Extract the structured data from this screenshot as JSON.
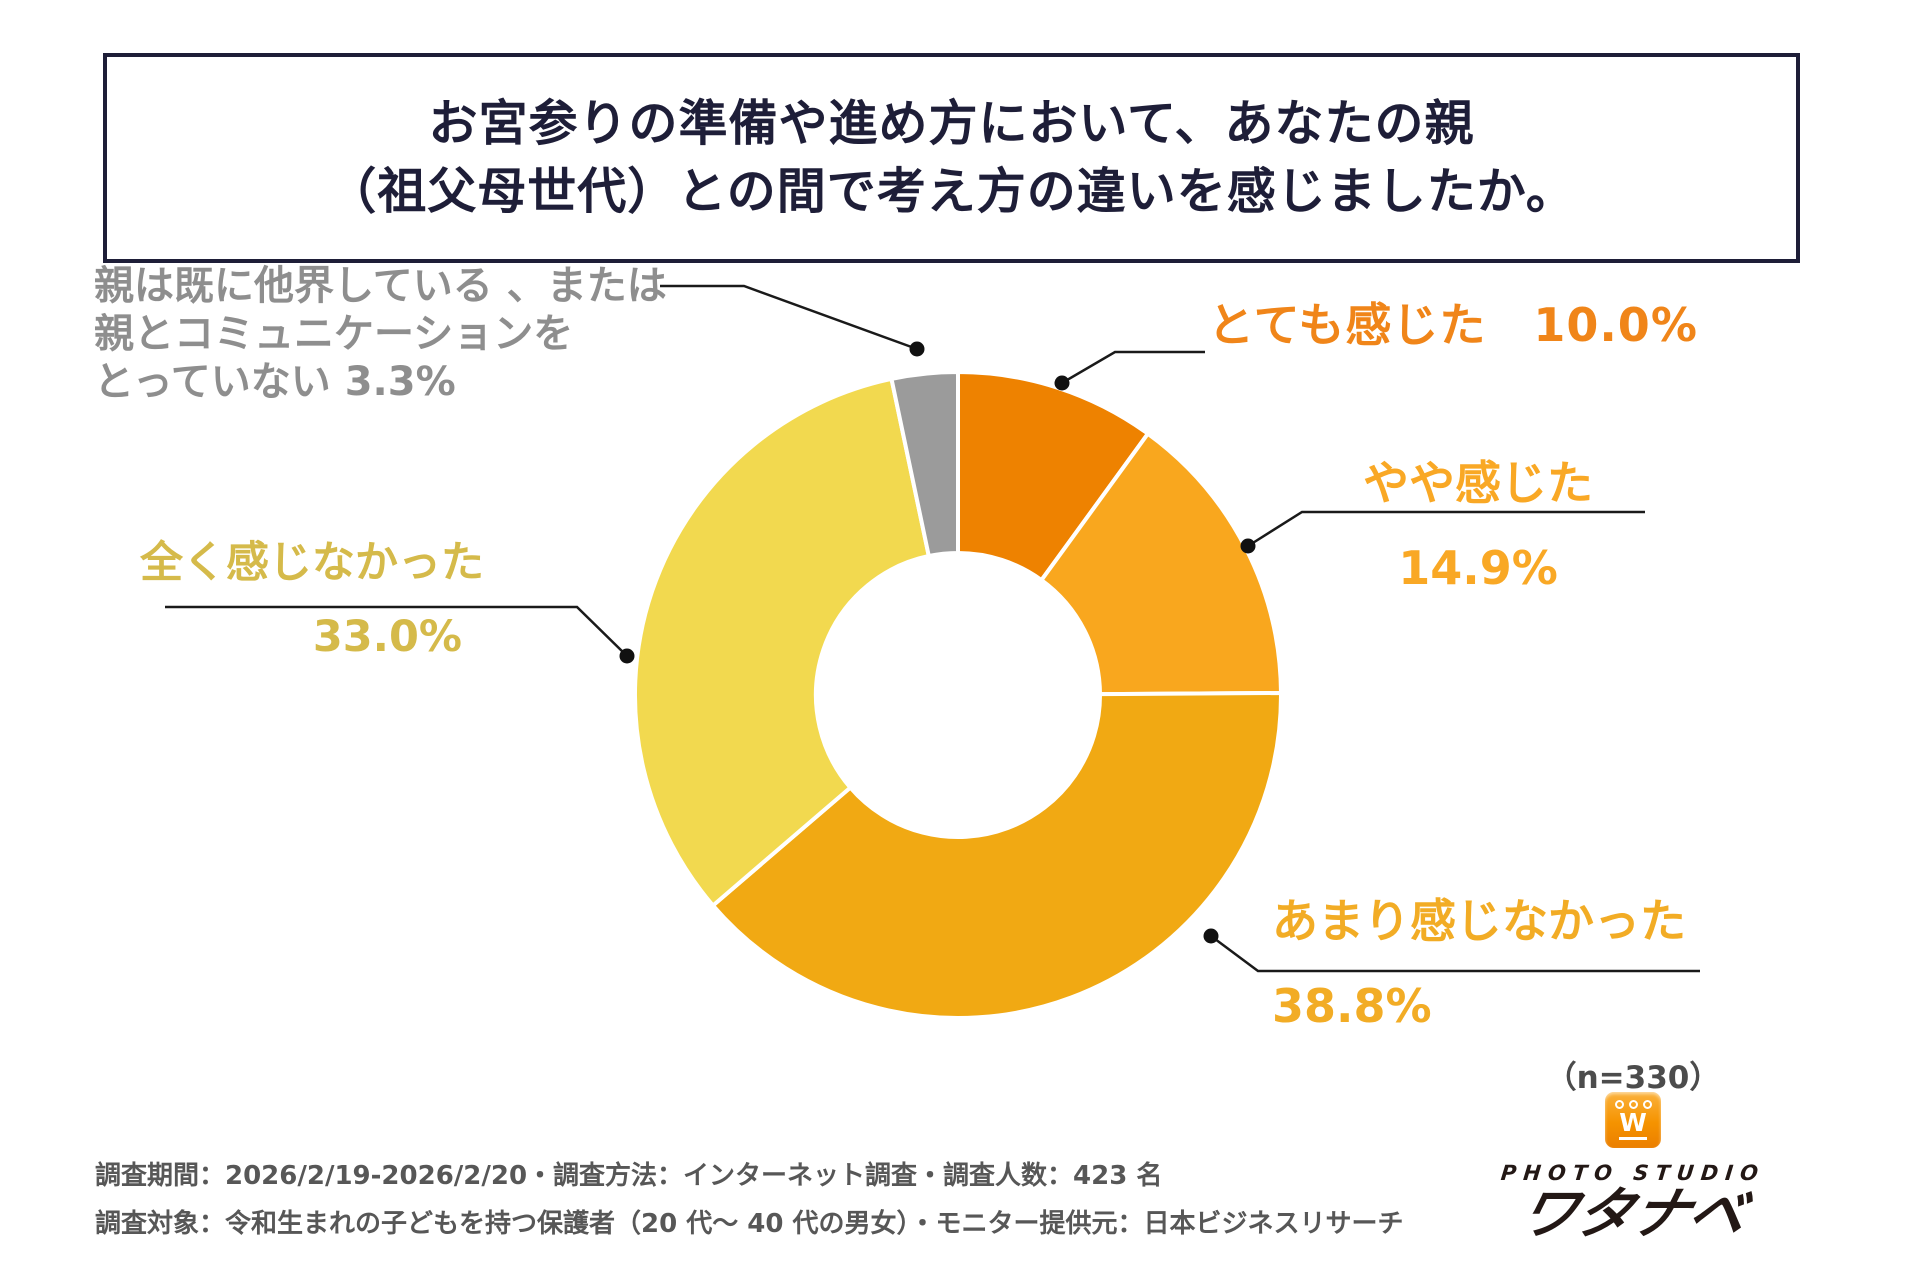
{
  "title": {
    "line1": "お宮参りの準備や進め方において、あなたの親",
    "line2": "（祖父母世代）との間で考え方の違いを感じましたか。"
  },
  "chart_data": {
    "type": "pie",
    "subtype": "donut",
    "title": "お宮参りの準備や進め方において、あなたの親（祖父母世代）との間で考え方の違いを感じましたか。",
    "unit": "%",
    "sample_size": 330,
    "start_angle_deg": 0,
    "direction": "clockwise",
    "hole_radius_ratio": 0.44,
    "legend_position": "callout-labels",
    "segments": [
      {
        "label": "とても感じた",
        "value": 10.0,
        "display_value": "10.0%",
        "color": "#EE8200"
      },
      {
        "label": "やや感じた",
        "value": 14.9,
        "display_value": "14.9%",
        "color": "#F9A71E"
      },
      {
        "label": "あまり感じなかった",
        "value": 38.8,
        "display_value": "38.8%",
        "color": "#F1A913"
      },
      {
        "label": "全く感じなかった",
        "value": 33.0,
        "display_value": "33.0%",
        "color": "#F2D94F"
      },
      {
        "label": "親は既に他界している 、または親とコミュニケーションをとっていない",
        "value": 3.3,
        "display_value": "3.3%",
        "color": "#9B9B9B"
      }
    ]
  },
  "callouts": [
    {
      "id": "very-felt",
      "color": "#F08519",
      "lines": [
        "とても感じた　10.0%"
      ]
    },
    {
      "id": "somewhat-felt",
      "color": "#F9A825",
      "lines": [
        "やや感じた",
        "14.9%"
      ]
    },
    {
      "id": "not-really-felt",
      "color": "#F2AC25",
      "lines": [
        "あまり感じなかった",
        "38.8%"
      ]
    },
    {
      "id": "not-at-all-felt",
      "color": "#D5BA4A",
      "lines": [
        "全く感じなかった",
        "33.0%"
      ]
    },
    {
      "id": "parents-passed-or-no-contact",
      "color": "#8E8E8E",
      "lines": [
        "親は既に他界している 、または",
        "親とコミュニケーションを",
        "とっていない 3.3%"
      ]
    }
  ],
  "sample_note": "（n=330）",
  "logo": {
    "badge_letter": "W",
    "studio_line": "PHOTO STUDIO",
    "name": "ワタナベ"
  },
  "footer": {
    "line1": "調査期間：2026/2/19-2026/2/20・調査方法：インターネット調査・調査人数：423 名",
    "line2": "調査対象：令和生まれの子どもを持つ保護者（20 代〜 40 代の男女）・モニター提供元：日本ビジネスリサーチ"
  }
}
